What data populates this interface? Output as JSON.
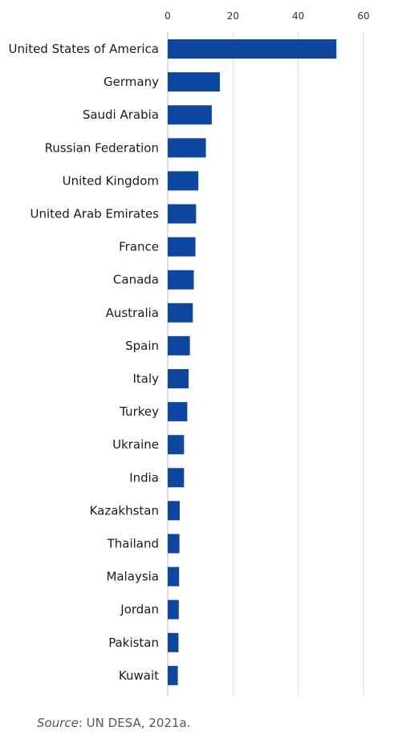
{
  "chart_data": {
    "type": "bar",
    "orientation": "horizontal",
    "categories": [
      "United States of America",
      "Germany",
      "Saudi Arabia",
      "Russian Federation",
      "United Kingdom",
      "United Arab Emirates",
      "France",
      "Canada",
      "Australia",
      "Spain",
      "Italy",
      "Turkey",
      "Ukraine",
      "India",
      "Kazakhstan",
      "Thailand",
      "Malaysia",
      "Jordan",
      "Pakistan",
      "Kuwait"
    ],
    "values": [
      51.7,
      16.0,
      13.5,
      11.7,
      9.4,
      8.7,
      8.5,
      8.0,
      7.7,
      6.8,
      6.4,
      6.0,
      5.0,
      5.0,
      3.7,
      3.6,
      3.5,
      3.4,
      3.3,
      3.1
    ],
    "xlim": [
      0,
      60
    ],
    "xticks": [
      0,
      20,
      40,
      60
    ],
    "axis_position": "top",
    "grid": true,
    "bar_color": "#0d47a1",
    "grid_color": "#d9d9d9"
  },
  "source": {
    "label": "Source",
    "text": ": UN DESA, 2021a."
  }
}
